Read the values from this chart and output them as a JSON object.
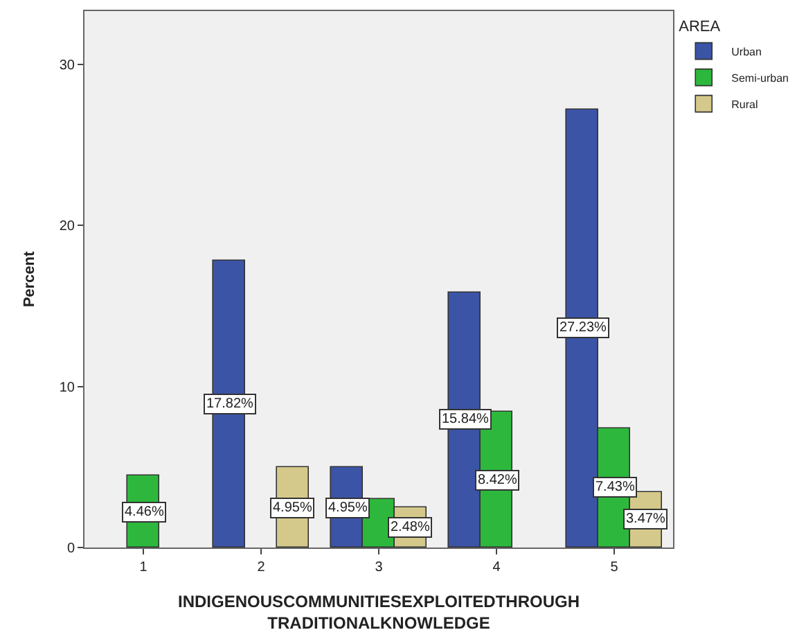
{
  "chart_data": {
    "type": "bar",
    "xlabel": "INDIGENOUSCOMMUNITIESEXPLOITEDTHROUGH\nTRADITIONALKNOWLEDGE",
    "ylabel": "Percent",
    "legend_title": "AREA",
    "legend": "top right",
    "categories": [
      "1",
      "2",
      "3",
      "4",
      "5"
    ],
    "series": [
      {
        "name": "Urban",
        "color": "#3b54a6",
        "values": [
          null,
          17.82,
          4.95,
          15.84,
          27.23
        ],
        "value_labels": [
          null,
          "17.82%",
          "4.95%",
          "15.84%",
          "27.23%"
        ]
      },
      {
        "name": "Semi-urban",
        "color": "#2db83d",
        "values": [
          4.46,
          null,
          3,
          8.42,
          7.43
        ],
        "value_labels": [
          "4.46%",
          null,
          null,
          "8.42%",
          "7.43%"
        ]
      },
      {
        "name": "Rural",
        "color": "#d4c98a",
        "values": [
          null,
          4.95,
          2.48,
          null,
          3.47
        ],
        "value_labels": [
          null,
          "4.95%",
          "2.48%",
          null,
          "3.47%"
        ]
      }
    ],
    "ylim": [
      0,
      33.3
    ],
    "yticks": [
      0,
      10,
      20,
      30
    ],
    "grid": false
  }
}
